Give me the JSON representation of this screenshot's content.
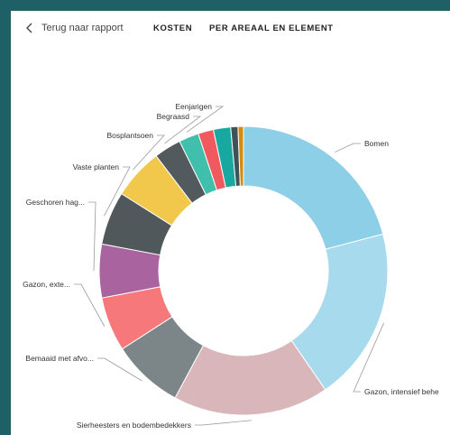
{
  "nav": {
    "back_label": "Terug naar rapport",
    "tabs": [
      {
        "label": "KOSTEN"
      },
      {
        "label": "PER AREAAL EN ELEMENT"
      }
    ]
  },
  "colors": {
    "frame": "#1f5f66",
    "background": "#ffffff"
  },
  "chart_data": {
    "type": "pie",
    "donut": true,
    "legend": "none",
    "labels": [
      "Bomen",
      "Gazon, intensief behe",
      "Sierheesters en bodembedekkers",
      "Bemaaid met afvo...",
      "Gazon, exte...",
      "Geschoren hag...",
      "Vaste planten",
      "Bosplantsoen",
      "Begraasd",
      "Eenjarigen",
      "",
      "",
      "",
      ""
    ],
    "values": [
      20.6,
      19.2,
      17.2,
      7.9,
      6.0,
      5.9,
      5.9,
      5.6,
      3.0,
      2.2,
      1.7,
      1.9,
      0.8,
      0.6
    ],
    "colors": [
      "#8dcfe6",
      "#a7daec",
      "#d9b6b9",
      "#7c8688",
      "#f7787a",
      "#a9649f",
      "#51585c",
      "#f1c84c",
      "#525a5e",
      "#3fbfac",
      "#f05a5f",
      "#18a8a0",
      "#3f5257",
      "#d28c12"
    ]
  }
}
